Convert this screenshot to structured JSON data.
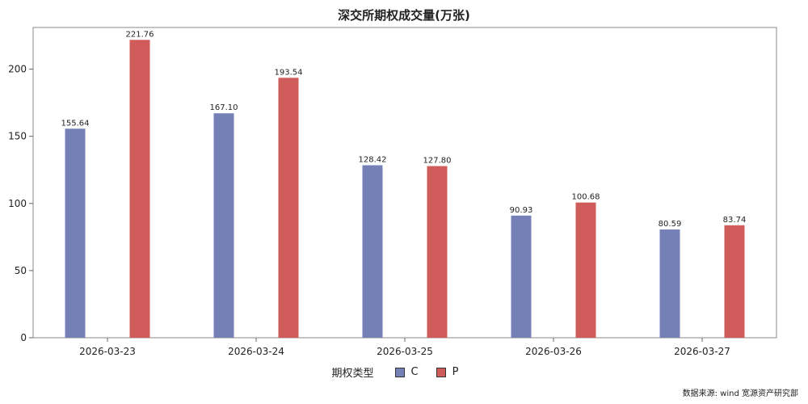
{
  "chart_data": {
    "type": "bar",
    "title": "深交所期权成交量(万张)",
    "categories": [
      "2026-03-23",
      "2026-03-24",
      "2026-03-25",
      "2026-03-26",
      "2026-03-27"
    ],
    "series": [
      {
        "name": "C",
        "color": "#7480b6",
        "values": [
          155.64,
          167.1,
          128.42,
          90.93,
          80.59
        ]
      },
      {
        "name": "P",
        "color": "#cf5b5b",
        "values": [
          221.76,
          193.54,
          127.8,
          100.68,
          83.74
        ]
      }
    ],
    "ylim": [
      0,
      231
    ],
    "yticks": [
      0,
      50,
      100,
      150,
      200
    ],
    "grid": false,
    "legend_title": "期权类型",
    "legend_position": "bottom"
  },
  "source_note": "数据来源:  wind  宽源资产研究部"
}
